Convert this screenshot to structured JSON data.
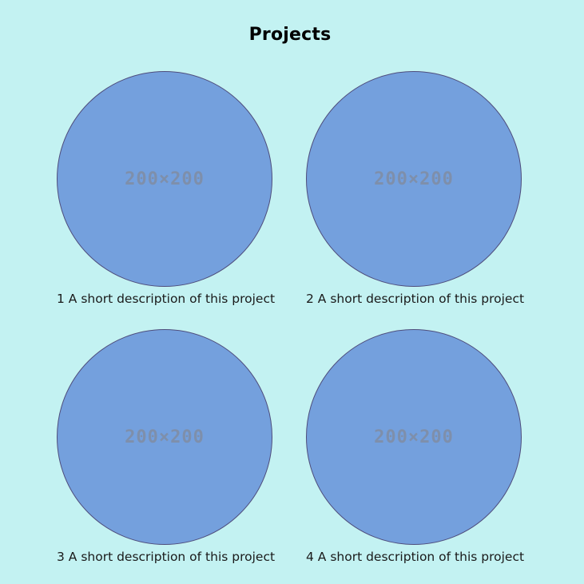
{
  "page": {
    "title": "Projects"
  },
  "projects": [
    {
      "placeholder": "200×200",
      "description": "1 A short description of this project"
    },
    {
      "placeholder": "200×200",
      "description": "2 A short description of this project"
    },
    {
      "placeholder": "200×200",
      "description": "3 A short description of this project"
    },
    {
      "placeholder": "200×200",
      "description": "4 A short description of this project"
    }
  ],
  "colors": {
    "background": "#c3f2f2",
    "circle_fill": "#74a0dd",
    "circle_border": "#4e4d7c",
    "placeholder_text": "#7e8fab"
  }
}
